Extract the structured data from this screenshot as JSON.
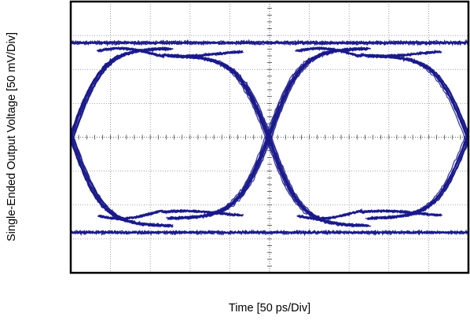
{
  "chart_data": {
    "type": "eye-diagram",
    "title": "",
    "xlabel": "Time [50 ps/Div]",
    "ylabel": "Single-Ended Output Voltage [50 mV/Div]",
    "x_divisions": 10,
    "y_divisions": 8,
    "x_units": "ps",
    "y_units": "mV",
    "x_per_div": 50,
    "y_per_div": 50,
    "xlim": [
      0,
      500
    ],
    "ylim": [
      -200,
      200
    ],
    "grid": true,
    "trace_color": "#1a1a8c",
    "levels": {
      "high_top": 146,
      "high_bottom": 128,
      "low_top": -128,
      "low_bottom": -150,
      "crossing": 0
    },
    "crossings_x": [
      0,
      250,
      500
    ],
    "overshoot_peak": 133,
    "undershoot_peak": -120,
    "series": [
      {
        "values": [
          [
            0,
            0
          ],
          [
            25,
            92
          ],
          [
            60,
            130
          ],
          [
            125,
            118
          ],
          [
            175,
            128
          ],
          [
            210,
            92
          ],
          [
            250,
            0
          ],
          [
            290,
            -92
          ],
          [
            325,
            -128
          ],
          [
            375,
            -118
          ],
          [
            440,
            -125
          ],
          [
            475,
            -92
          ],
          [
            500,
            0
          ]
        ]
      },
      {
        "values": [
          [
            0,
            0
          ],
          [
            25,
            -92
          ],
          [
            60,
            -130
          ],
          [
            125,
            -118
          ],
          [
            175,
            -128
          ],
          [
            210,
            -92
          ],
          [
            250,
            0
          ],
          [
            290,
            92
          ],
          [
            325,
            128
          ],
          [
            375,
            118
          ],
          [
            440,
            125
          ],
          [
            475,
            92
          ],
          [
            500,
            0
          ]
        ]
      }
    ]
  }
}
